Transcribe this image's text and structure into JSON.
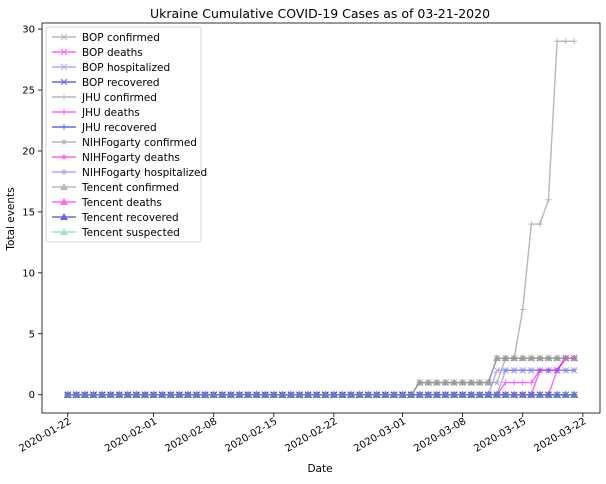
{
  "chart_data": {
    "type": "line",
    "title": "Ukraine Cumulative COVID-19 Cases as of 03-21-2020",
    "xlabel": "Date",
    "ylabel": "Total events",
    "x_start": "2020-01-22",
    "x_end": "2020-03-21",
    "xlim": [
      "2020-01-19",
      "2020-03-24"
    ],
    "ylim": [
      -1.5,
      30.5
    ],
    "yticks": [
      0,
      5,
      10,
      15,
      20,
      25,
      30
    ],
    "xticks": [
      "2020-01-22",
      "2020-02-01",
      "2020-02-08",
      "2020-02-15",
      "2020-02-22",
      "2020-03-01",
      "2020-03-08",
      "2020-03-15",
      "2020-03-22"
    ],
    "grid": false,
    "legend_position": "top-left",
    "series": [
      {
        "name": "BOP confirmed",
        "color": "#999999",
        "marker": "x",
        "alpha": 0.7,
        "x": [
          "2020-01-22",
          "2020-03-02",
          "2020-03-03",
          "2020-03-11",
          "2020-03-12",
          "2020-03-20"
        ],
        "y": [
          0,
          0,
          1,
          1,
          3,
          3
        ]
      },
      {
        "name": "BOP deaths",
        "color": "#ff00ff",
        "marker": "x",
        "alpha": 0.6,
        "x": [
          "2020-01-22",
          "2020-03-18",
          "2020-03-19",
          "2020-03-20"
        ],
        "y": [
          0,
          0,
          2,
          3
        ]
      },
      {
        "name": "BOP hospitalized",
        "color": "#7777ff",
        "marker": "x",
        "alpha": 0.6,
        "x": [
          "2020-01-22",
          "2020-03-11",
          "2020-03-12",
          "2020-03-20"
        ],
        "y": [
          0,
          0,
          2,
          2
        ]
      },
      {
        "name": "BOP recovered",
        "color": "#0000dd",
        "marker": "x",
        "alpha": 0.6,
        "x": [
          "2020-01-22",
          "2020-03-20"
        ],
        "y": [
          0,
          0
        ]
      },
      {
        "name": "JHU confirmed",
        "color": "#999999",
        "marker": "+",
        "alpha": 0.7,
        "x": [
          "2020-01-22",
          "2020-03-02",
          "2020-03-03",
          "2020-03-11",
          "2020-03-12",
          "2020-03-14",
          "2020-03-15",
          "2020-03-16",
          "2020-03-17",
          "2020-03-18",
          "2020-03-19",
          "2020-03-20"
        ],
        "y": [
          0,
          0,
          1,
          1,
          3,
          3,
          7,
          14,
          14,
          16,
          29,
          29
        ]
      },
      {
        "name": "JHU deaths",
        "color": "#ff00ff",
        "marker": "+",
        "alpha": 0.6,
        "x": [
          "2020-01-22",
          "2020-03-12",
          "2020-03-13",
          "2020-03-16",
          "2020-03-17",
          "2020-03-19",
          "2020-03-20"
        ],
        "y": [
          0,
          0,
          1,
          1,
          2,
          2,
          3
        ]
      },
      {
        "name": "JHU recovered",
        "color": "#0000dd",
        "marker": "+",
        "alpha": 0.6,
        "x": [
          "2020-01-22",
          "2020-03-20"
        ],
        "y": [
          0,
          0
        ]
      },
      {
        "name": "NIHFogarty confirmed",
        "color": "#999999",
        "marker": "*",
        "alpha": 0.7,
        "x": [
          "2020-01-22",
          "2020-03-02",
          "2020-03-03",
          "2020-03-12",
          "2020-03-13",
          "2020-03-20"
        ],
        "y": [
          0,
          0,
          1,
          1,
          3,
          3
        ]
      },
      {
        "name": "NIHFogarty deaths",
        "color": "#ff00ff",
        "marker": "*",
        "alpha": 0.6,
        "x": [
          "2020-01-22",
          "2020-03-16",
          "2020-03-17",
          "2020-03-19",
          "2020-03-20"
        ],
        "y": [
          0,
          0,
          2,
          2,
          3
        ]
      },
      {
        "name": "NIHFogarty hospitalized",
        "color": "#7777ff",
        "marker": "*",
        "alpha": 0.6,
        "x": [
          "2020-01-22",
          "2020-03-12",
          "2020-03-13",
          "2020-03-20"
        ],
        "y": [
          0,
          0,
          2,
          2
        ]
      },
      {
        "name": "Tencent confirmed",
        "color": "#999999",
        "marker": "^",
        "alpha": 0.7,
        "x": [
          "2020-01-22",
          "2020-03-02",
          "2020-03-03",
          "2020-03-11",
          "2020-03-12",
          "2020-03-20"
        ],
        "y": [
          0,
          0,
          1,
          1,
          3,
          3
        ]
      },
      {
        "name": "Tencent deaths",
        "color": "#ff00ff",
        "marker": "^",
        "alpha": 0.6,
        "x": [
          "2020-01-22",
          "2020-03-20"
        ],
        "y": [
          0,
          0
        ]
      },
      {
        "name": "Tencent recovered",
        "color": "#0000dd",
        "marker": "^",
        "alpha": 0.6,
        "x": [
          "2020-01-22",
          "2020-03-20"
        ],
        "y": [
          0,
          0
        ]
      },
      {
        "name": "Tencent suspected",
        "color": "#66ccaa",
        "marker": "^",
        "alpha": 0.6,
        "x": [
          "2020-01-22",
          "2020-03-20"
        ],
        "y": [
          0,
          0
        ]
      }
    ]
  }
}
